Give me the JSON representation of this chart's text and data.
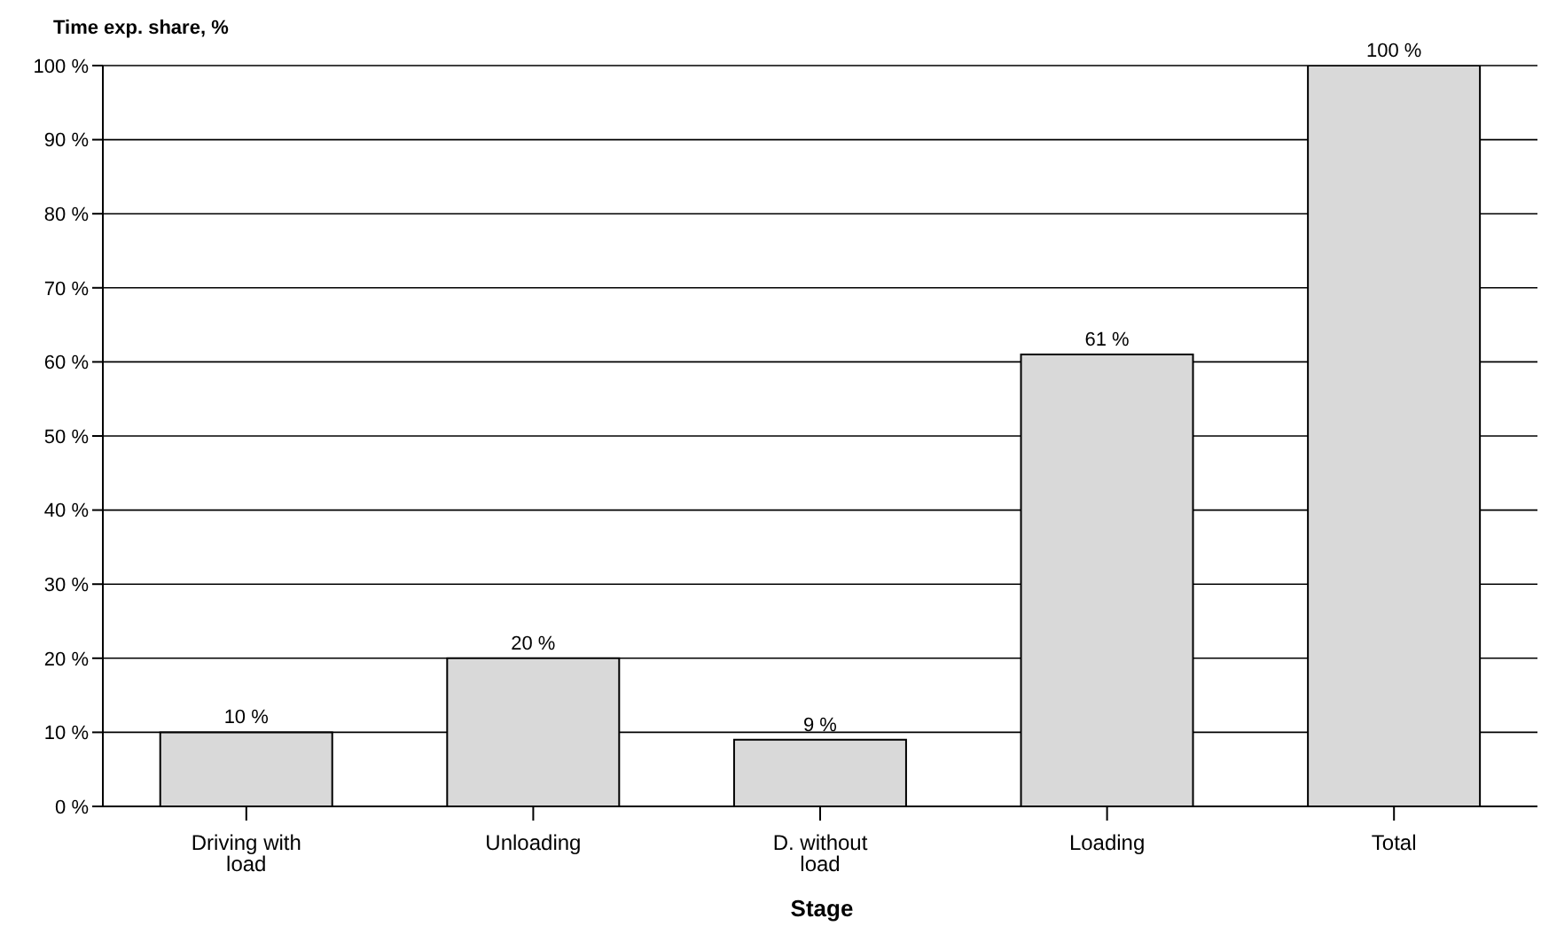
{
  "chart_data": {
    "type": "bar",
    "ylabel": "Time exp. share, %",
    "xlabel": "Stage",
    "categories": [
      "Driving with load",
      "Unloading",
      "D. without load",
      "Loading",
      "Total"
    ],
    "values": [
      10,
      20,
      9,
      61,
      100
    ],
    "value_labels": [
      "10 %",
      "20 %",
      "9 %",
      "61 %",
      "100 %"
    ],
    "color": "#d9d9d9",
    "ylim": [
      0,
      100
    ],
    "yticks": [
      {
        "value": 0,
        "label": "0 %"
      },
      {
        "value": 10,
        "label": "10 %"
      },
      {
        "value": 20,
        "label": "20 %"
      },
      {
        "value": 30,
        "label": "30 %"
      },
      {
        "value": 40,
        "label": "40 %"
      },
      {
        "value": 50,
        "label": "50 %"
      },
      {
        "value": 60,
        "label": "60 %"
      },
      {
        "value": 70,
        "label": "70 %"
      },
      {
        "value": 80,
        "label": "80 %"
      },
      {
        "value": 90,
        "label": "90 %"
      },
      {
        "value": 100,
        "label": "100 %"
      }
    ],
    "grid": "y",
    "legend": false
  }
}
